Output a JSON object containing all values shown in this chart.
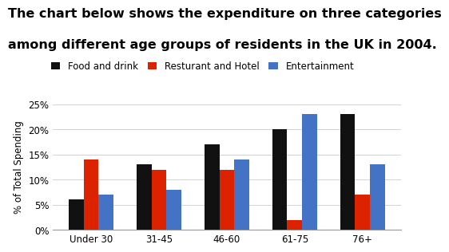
{
  "title_line1": "The chart below shows the expenditure on three categories",
  "title_line2": "among different age groups of residents in the UK in 2004.",
  "categories": [
    "Under 30",
    "31-45",
    "46-60",
    "61-75",
    "76+"
  ],
  "series": [
    {
      "label": "Food and drink",
      "color": "#111111",
      "values": [
        6,
        13,
        17,
        20,
        23
      ]
    },
    {
      "label": "Resturant and Hotel",
      "color": "#dd2200",
      "values": [
        14,
        12,
        12,
        2,
        7
      ]
    },
    {
      "label": "Entertainment",
      "color": "#4472c4",
      "values": [
        7,
        8,
        14,
        23,
        13
      ]
    }
  ],
  "ylabel": "% of Total Spending",
  "ylim": [
    0,
    25
  ],
  "yticks": [
    0,
    5,
    10,
    15,
    20,
    25
  ],
  "ytick_labels": [
    "0%",
    "5%",
    "10%",
    "15%",
    "20%",
    "25%"
  ],
  "background_color": "#ffffff",
  "title_fontsize": 11.5,
  "legend_fontsize": 8.5,
  "ylabel_fontsize": 8.5,
  "tick_fontsize": 8.5,
  "bar_width": 0.22
}
